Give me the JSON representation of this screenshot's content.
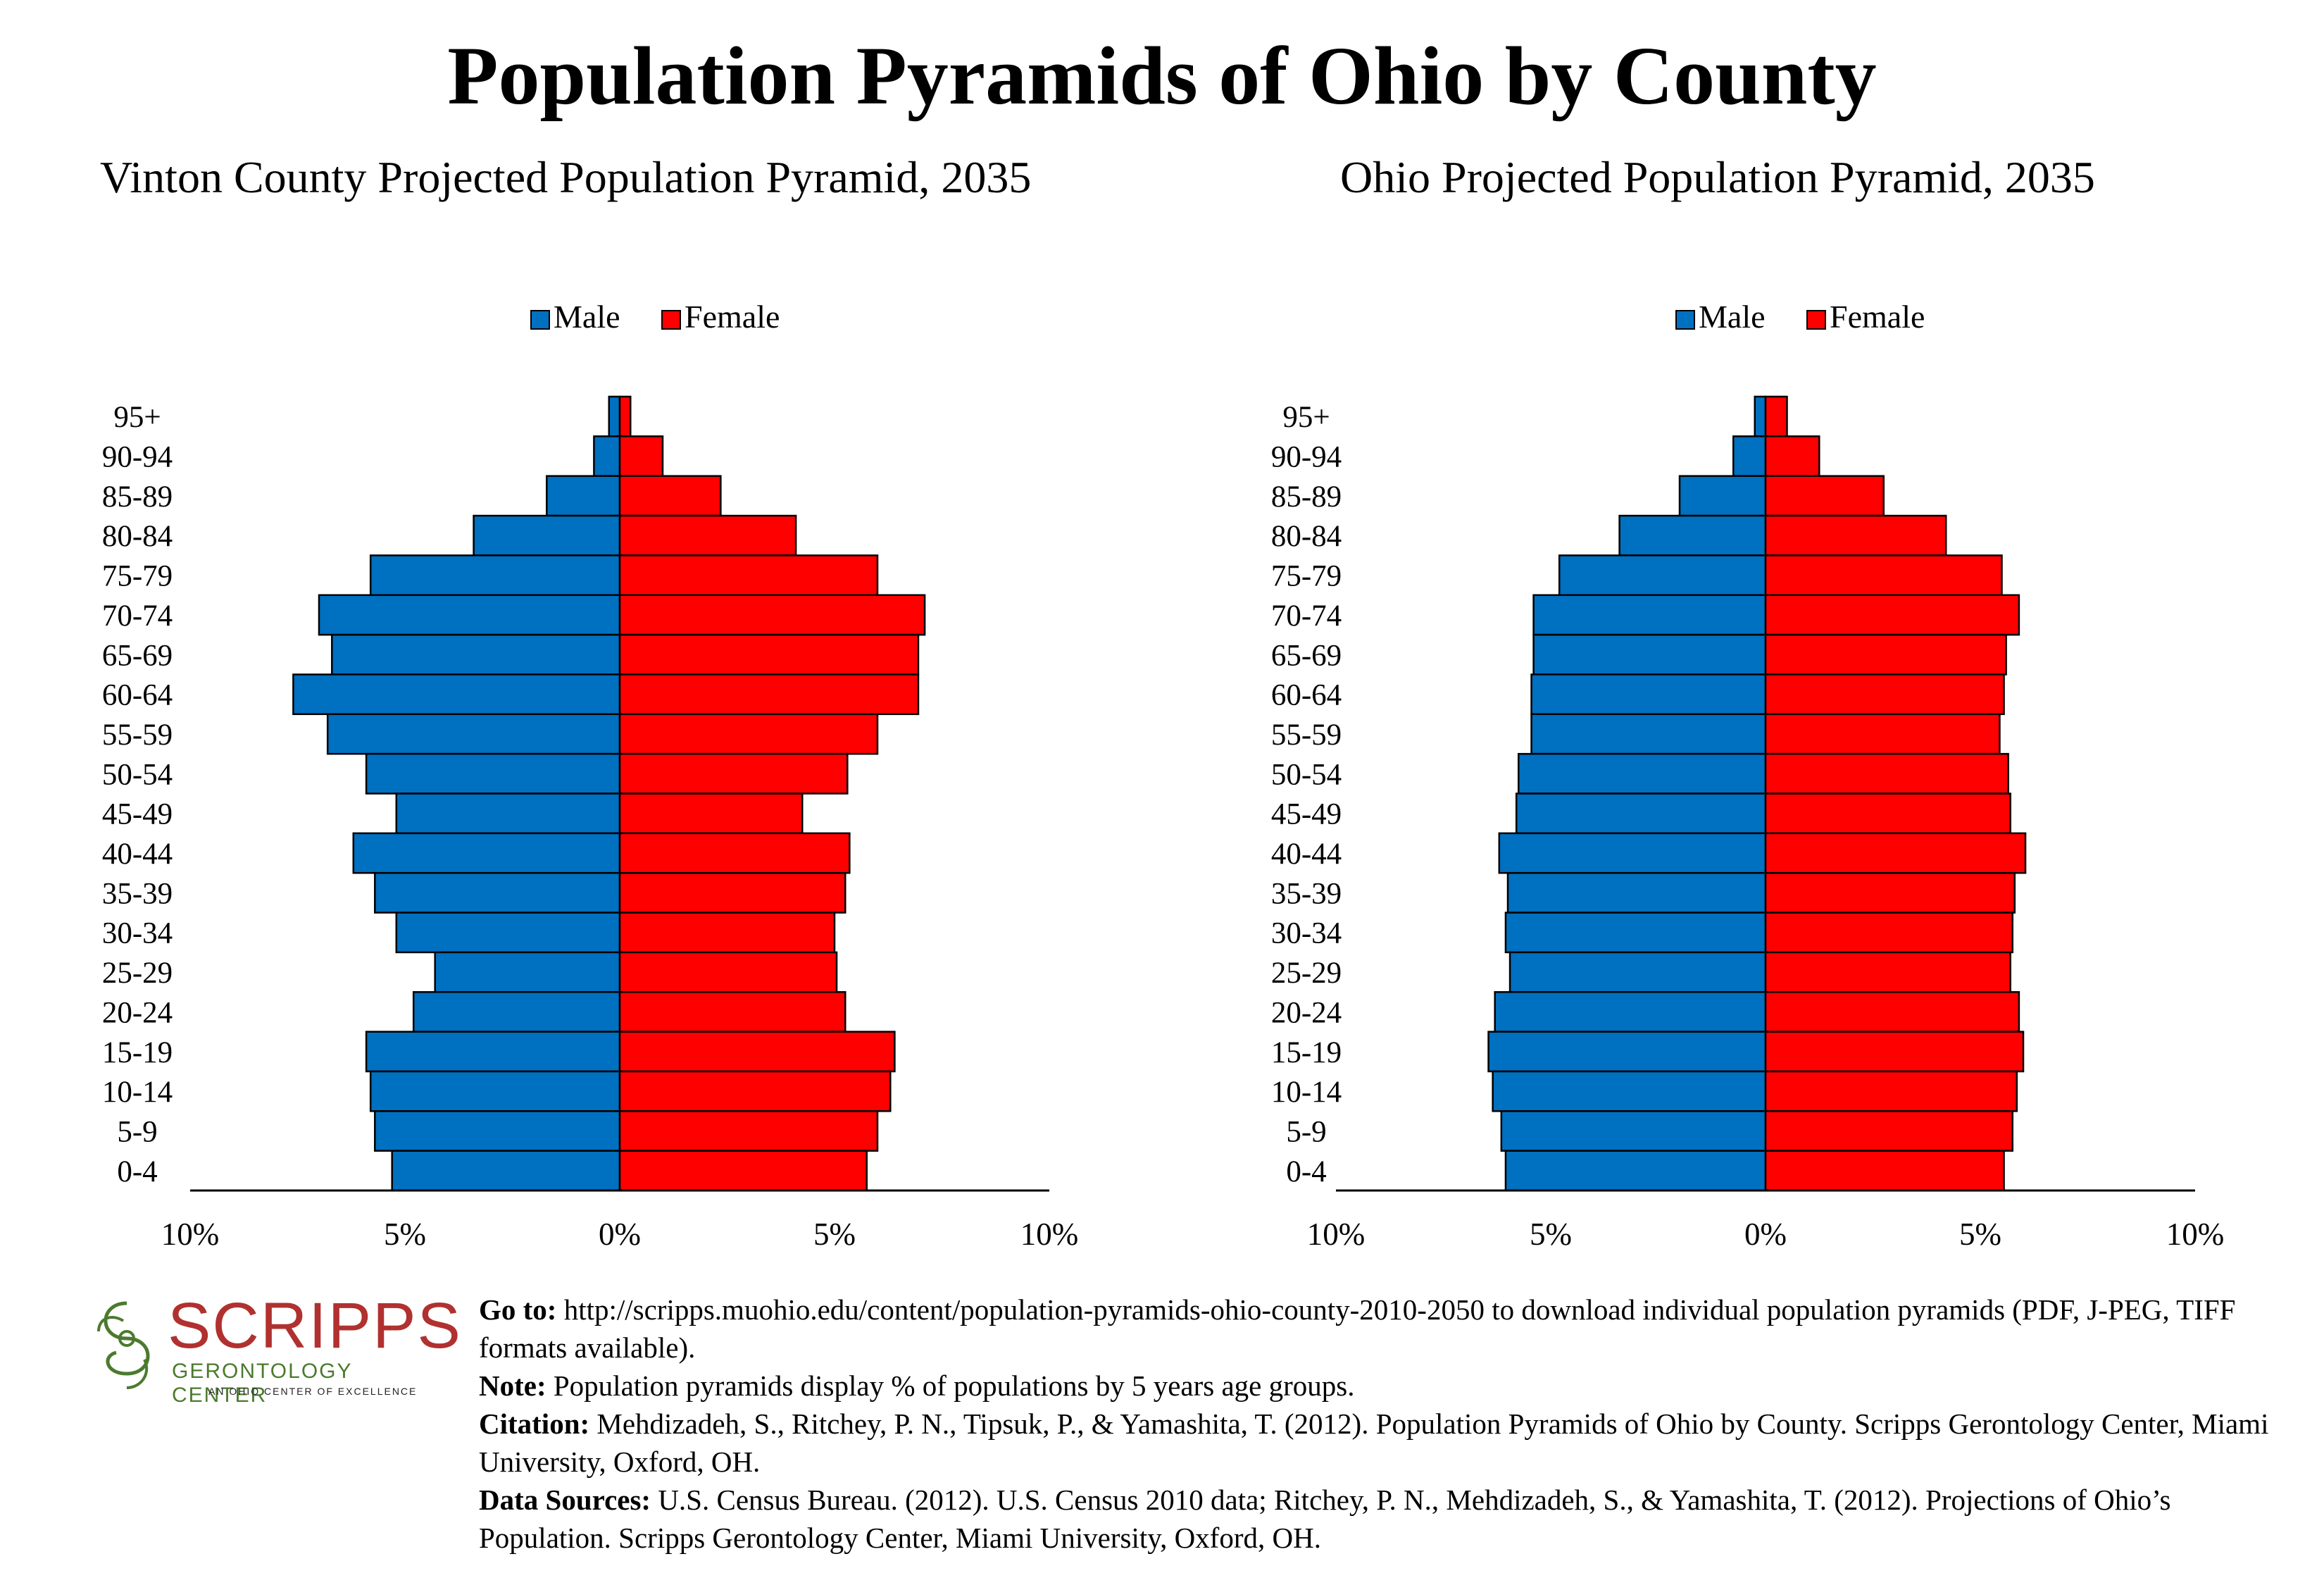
{
  "main_title": "Population Pyramids of Ohio by County",
  "colors": {
    "male": "#0070C0",
    "female": "#FF0000",
    "axis": "#000000"
  },
  "chart_data": [
    {
      "type": "bar",
      "orientation": "horizontal-pyramid",
      "title": "Vinton County Projected Population Pyramid, 2035",
      "legend": {
        "placement": "top-center",
        "entries": [
          "Male",
          "Female"
        ]
      },
      "categories": [
        "95+",
        "90-94",
        "85-89",
        "80-84",
        "75-79",
        "70-74",
        "65-69",
        "60-64",
        "55-59",
        "50-54",
        "45-49",
        "40-44",
        "35-39",
        "30-34",
        "25-29",
        "20-24",
        "15-19",
        "10-14",
        "5-9",
        "0-4"
      ],
      "series": [
        {
          "name": "Male",
          "values": [
            0.25,
            0.6,
            1.7,
            3.4,
            5.8,
            7.0,
            6.7,
            7.6,
            6.8,
            5.9,
            5.2,
            6.2,
            5.7,
            5.2,
            4.3,
            4.8,
            5.9,
            5.8,
            5.7,
            5.3
          ]
        },
        {
          "name": "Female",
          "values": [
            0.25,
            1.0,
            2.35,
            4.1,
            6.0,
            7.1,
            6.95,
            6.95,
            6.0,
            5.3,
            4.25,
            5.35,
            5.25,
            5.0,
            5.05,
            5.25,
            6.4,
            6.3,
            6.0,
            5.75
          ]
        }
      ],
      "xlim": [
        -10,
        10
      ],
      "xticks": [
        "10%",
        "5%",
        "0%",
        "5%",
        "10%"
      ],
      "xtick_values": [
        -10,
        -5,
        0,
        5,
        10
      ],
      "grid": false
    },
    {
      "type": "bar",
      "orientation": "horizontal-pyramid",
      "title": "Ohio Projected Population Pyramid, 2035",
      "legend": {
        "placement": "top-center",
        "entries": [
          "Male",
          "Female"
        ]
      },
      "categories": [
        "95+",
        "90-94",
        "85-89",
        "80-84",
        "75-79",
        "70-74",
        "65-69",
        "60-64",
        "55-59",
        "50-54",
        "45-49",
        "40-44",
        "35-39",
        "30-34",
        "25-29",
        "20-24",
        "15-19",
        "10-14",
        "5-9",
        "0-4"
      ],
      "series": [
        {
          "name": "Male",
          "values": [
            0.25,
            0.75,
            2.0,
            3.4,
            4.8,
            5.4,
            5.4,
            5.45,
            5.45,
            5.75,
            5.8,
            6.2,
            6.0,
            6.05,
            5.95,
            6.3,
            6.45,
            6.35,
            6.15,
            6.05
          ]
        },
        {
          "name": "Female",
          "values": [
            0.5,
            1.25,
            2.75,
            4.2,
            5.5,
            5.9,
            5.6,
            5.55,
            5.45,
            5.65,
            5.7,
            6.05,
            5.8,
            5.75,
            5.7,
            5.9,
            6.0,
            5.85,
            5.75,
            5.55
          ]
        }
      ],
      "xlim": [
        -10,
        10
      ],
      "xticks": [
        "10%",
        "5%",
        "0%",
        "5%",
        "10%"
      ],
      "xtick_values": [
        -10,
        -5,
        0,
        5,
        10
      ],
      "grid": false
    }
  ],
  "logo": {
    "name": "SCRIPPS",
    "subtitle": "GERONTOLOGY CENTER",
    "tagline": "AN OHIO CENTER OF EXCELLENCE"
  },
  "footer": {
    "goto_label": "Go to:",
    "goto_text": " http://scripps.muohio.edu/content/population-pyramids-ohio-county-2010-2050 to download individual population pyramids (PDF, J-PEG, TIFF formats available).",
    "note_label": "Note:",
    "note_text": " Population pyramids display % of populations by 5 years age groups.",
    "citation_label": "Citation:",
    "citation_text": " Mehdizadeh, S., Ritchey, P. N., Tipsuk, P., & Yamashita, T. (2012). Population Pyramids of Ohio by County. Scripps Gerontology Center, Miami University, Oxford, OH.",
    "sources_label": "Data Sources:",
    "sources_text": " U.S. Census Bureau. (2012). U.S. Census 2010 data; Ritchey, P. N., Mehdizadeh, S., & Yamashita, T. (2012). Projections of Ohio’s Population. Scripps Gerontology Center, Miami University, Oxford, OH."
  }
}
